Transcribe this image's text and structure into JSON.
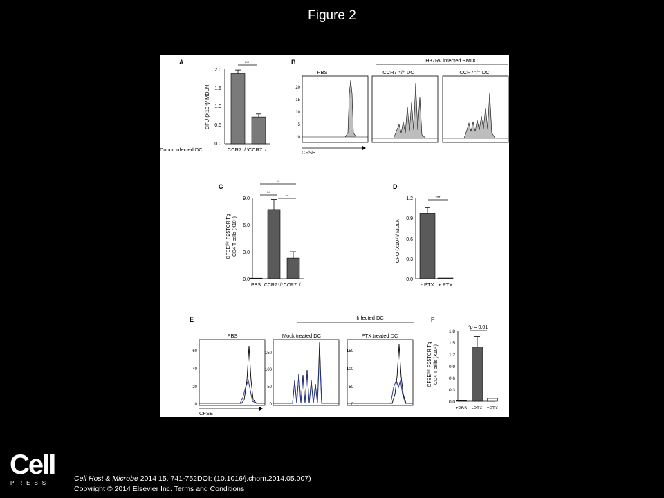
{
  "slide": {
    "title": "Figure 2"
  },
  "figure": {
    "A": {
      "letter": "A",
      "ylabel": "CFU (X10⁴)/ MDLN",
      "yticks": [
        "2.0",
        "1.5",
        "1.0",
        "0.5",
        "0.0"
      ],
      "xlabel_prefix": "Donor infected DC:",
      "categories": [
        "CCR7⁺/⁺",
        "CCR7⁻/⁻"
      ],
      "sig": "***"
    },
    "B": {
      "letter": "B",
      "header": "H37Rv infected BMDC",
      "panels": [
        "PBS",
        "CCR7 ⁺/⁺ DC",
        "CCR7⁻/⁻ DC"
      ],
      "yticks": [
        "20",
        "15",
        "10",
        "5",
        "0"
      ],
      "xlabel": "CFSE"
    },
    "C": {
      "letter": "C",
      "ylabel1": "CFSEᵈⁱᵐ P25TCR Tg",
      "ylabel2": "CD4 T cells (X10⁴)",
      "yticks": [
        "9.0",
        "6.0",
        "3.0",
        "0.0"
      ],
      "categories": [
        "PBS",
        "CCR7⁺/⁺",
        "CCR7⁻/⁻"
      ],
      "sig_top": "*",
      "sig_left": "**",
      "sig_right": "**"
    },
    "D": {
      "letter": "D",
      "ylabel": "CFU (X10⁴)/ MDLN",
      "yticks": [
        "1.2",
        "0.9",
        "0.6",
        "0.3",
        "0.0"
      ],
      "categories": [
        "- PTX",
        "+ PTX"
      ],
      "sig": "***"
    },
    "E": {
      "letter": "E",
      "header": "Infected DC",
      "panels": [
        "PBS",
        "Mock treated DC",
        "PTX treated DC"
      ],
      "yticks_first": [
        "60",
        "40",
        "20",
        "0"
      ],
      "yticks_other": [
        "150",
        "100",
        "50",
        "0"
      ],
      "xlabel": "CFSE"
    },
    "F": {
      "letter": "F",
      "ylabel1": "CFSEᵈⁱᵐ P25TCR Tg",
      "ylabel2": "CD4 T cells (X10⁴)",
      "yticks": [
        "1.8",
        "1.5",
        "1.2",
        "0.9",
        "0.6",
        "0.3",
        "0.0"
      ],
      "categories": [
        "+PBS",
        "-PTX",
        "+PTX"
      ],
      "sig": "*p = 0.01"
    }
  },
  "chart_data": [
    {
      "type": "bar",
      "panel": "A",
      "categories": [
        "CCR7+/+",
        "CCR7-/-"
      ],
      "values": [
        1.88,
        0.72
      ],
      "errors": [
        0.1,
        0.08
      ],
      "ylabel": "CFU (X10⁴)/ MDLN",
      "ylim": [
        0,
        2.0
      ]
    },
    {
      "type": "bar",
      "panel": "C",
      "categories": [
        "PBS",
        "CCR7+/+",
        "CCR7-/-"
      ],
      "values": [
        0.0,
        7.7,
        2.3
      ],
      "errors": [
        0.0,
        1.1,
        0.7
      ],
      "ylim": [
        0,
        9.0
      ]
    },
    {
      "type": "bar",
      "panel": "D",
      "categories": [
        "- PTX",
        "+ PTX"
      ],
      "values": [
        0.97,
        0.01
      ],
      "errors": [
        0.09,
        0.0
      ],
      "ylabel": "CFU (X10⁴)/ MDLN",
      "ylim": [
        0,
        1.2
      ]
    },
    {
      "type": "bar",
      "panel": "F",
      "categories": [
        "+PBS",
        "-PTX",
        "+PTX"
      ],
      "values": [
        0.01,
        1.38,
        0.07
      ],
      "errors": [
        0.0,
        0.27,
        0.0
      ],
      "ylim": [
        0,
        1.8
      ]
    }
  ],
  "colors": {
    "bar_gray": "#7a7a7a",
    "bar_dark": "#5a5a5a",
    "histogram_fill": "#bdbdbd",
    "trace_blue": "#2b3a8f"
  },
  "footer": {
    "logo_word": "Cell",
    "logo_sub": "PRESS",
    "journal": "Cell Host & Microbe",
    "citation_rest": " 2014 15, 741-752DOI: (10.1016/j.chom.2014.05.007)",
    "copyright": "Copyright © 2014 Elsevier Inc.",
    "terms_link": " Terms and Conditions"
  }
}
